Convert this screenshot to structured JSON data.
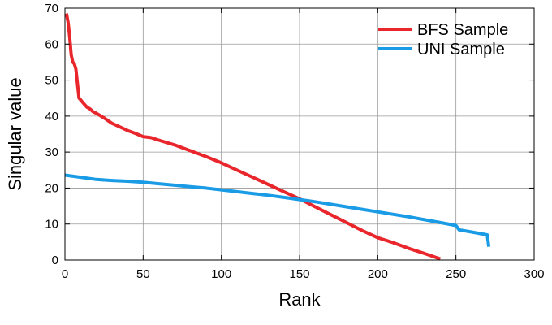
{
  "chart_data": {
    "type": "line",
    "title": "",
    "xlabel": "Rank",
    "ylabel": "Singular value",
    "xlim": [
      0,
      300
    ],
    "ylim": [
      0,
      70
    ],
    "xticks": [
      0,
      50,
      100,
      150,
      200,
      250,
      300
    ],
    "yticks": [
      0,
      10,
      20,
      30,
      40,
      50,
      60,
      70
    ],
    "grid": true,
    "legend": "top-right",
    "series": [
      {
        "name": "BFS Sample",
        "color": "#e8262b",
        "x": [
          1,
          2,
          3,
          4,
          5,
          6,
          7,
          8,
          9,
          10,
          12,
          14,
          16,
          18,
          20,
          25,
          30,
          35,
          40,
          45,
          50,
          55,
          60,
          70,
          80,
          90,
          100,
          110,
          120,
          130,
          140,
          150,
          160,
          170,
          180,
          190,
          200,
          210,
          220,
          230,
          240
        ],
        "y": [
          68.5,
          66,
          62,
          57,
          55,
          54.5,
          53,
          49,
          45,
          44.5,
          43.5,
          42.5,
          42,
          41.2,
          40.8,
          39.5,
          38,
          37,
          36,
          35.2,
          34.3,
          34,
          33.3,
          32,
          30.4,
          28.8,
          27,
          25,
          23,
          21,
          19,
          17,
          14.8,
          12.6,
          10.4,
          8.2,
          6.2,
          4.8,
          3.2,
          1.8,
          0.3
        ]
      },
      {
        "name": "UNI Sample",
        "color": "#1a9be6",
        "x": [
          0,
          10,
          20,
          30,
          40,
          50,
          60,
          70,
          80,
          90,
          100,
          110,
          120,
          130,
          140,
          150,
          160,
          170,
          180,
          190,
          200,
          210,
          220,
          230,
          240,
          250,
          252,
          260,
          270,
          271
        ],
        "y": [
          23.6,
          23,
          22.4,
          22.1,
          21.9,
          21.6,
          21.2,
          20.8,
          20.4,
          20,
          19.5,
          19,
          18.5,
          18,
          17.4,
          16.8,
          16.2,
          15.5,
          14.8,
          14.1,
          13.4,
          12.7,
          12,
          11.2,
          10.4,
          9.6,
          8.4,
          7.8,
          7,
          3.7
        ]
      }
    ]
  }
}
